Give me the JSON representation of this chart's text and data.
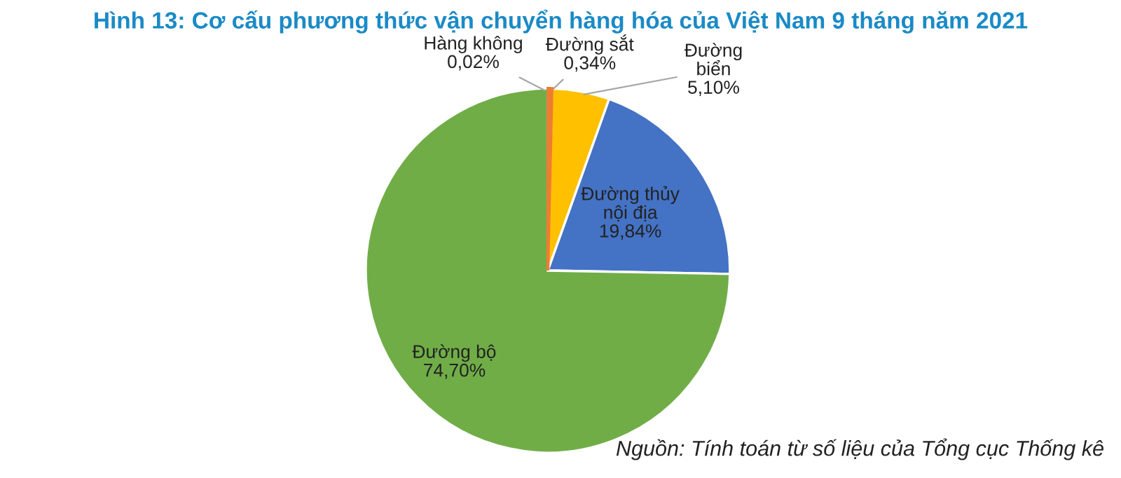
{
  "chart_data": {
    "type": "pie",
    "title": "Hình 13: Cơ cấu phương thức vận chuyển hàng hóa của Việt Nam 9 tháng năm 2021",
    "categories": [
      "Hàng không",
      "Đường sắt",
      "Đường\nbiển",
      "Đường thủy\nnội địa",
      "Đường bộ"
    ],
    "values": [
      0.02,
      0.34,
      5.1,
      19.84,
      74.7
    ],
    "colors": [
      "#a5a5a5",
      "#ed7d31",
      "#ffc000",
      "#4472c4",
      "#70ad47"
    ],
    "value_labels": [
      "0,02%",
      "0,34%",
      "5,10%",
      "19,84%",
      "74,70%"
    ],
    "annotations": [
      "Nguồn: Tính toán từ số liệu của Tổng cục Thống kê"
    ]
  }
}
